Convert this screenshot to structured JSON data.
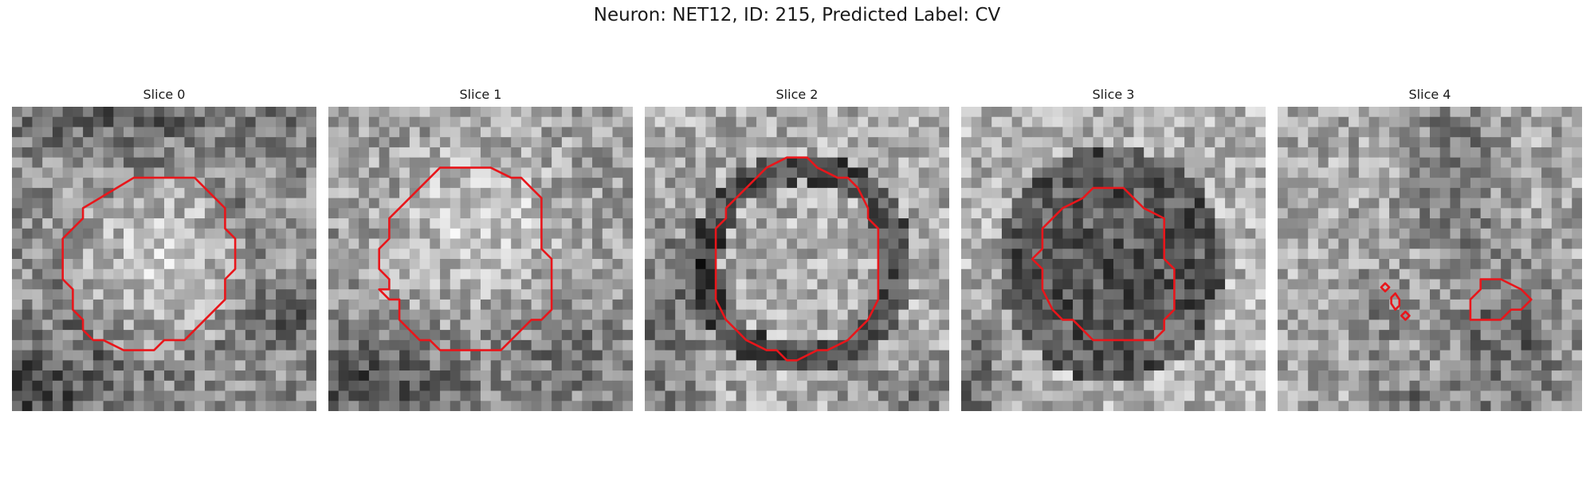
{
  "figure": {
    "title": "Neuron: NET12, ID: 215, Predicted Label: CV",
    "outline_color": "#e8161b",
    "grid_size": 30
  },
  "panels": [
    {
      "title": "Slice 0"
    },
    {
      "title": "Slice 1"
    },
    {
      "title": "Slice 2"
    },
    {
      "title": "Slice 3"
    },
    {
      "title": "Slice 4"
    }
  ]
}
